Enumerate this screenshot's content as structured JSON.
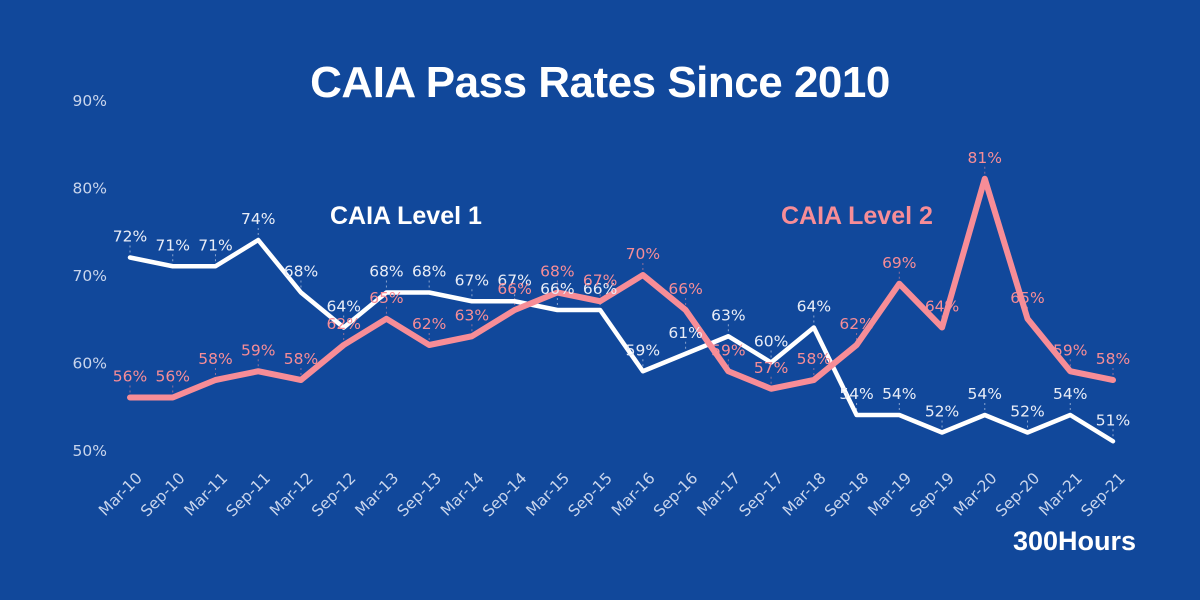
{
  "title": "CAIA Pass Rates Since 2010",
  "watermark": "300Hours",
  "colors": {
    "background": "#11489B",
    "level1": "#FFFFFF",
    "level1_label": "#E9EDF7",
    "level2": "#F78D97",
    "axis_text": "#C9D5EC"
  },
  "chart_data": {
    "type": "line",
    "title": "CAIA Pass Rates Since 2010",
    "categories": [
      "Mar-10",
      "Sep-10",
      "Mar-11",
      "Sep-11",
      "Mar-12",
      "Sep-12",
      "Mar-13",
      "Sep-13",
      "Mar-14",
      "Sep-14",
      "Mar-15",
      "Sep-15",
      "Mar-16",
      "Sep-16",
      "Mar-17",
      "Sep-17",
      "Mar-18",
      "Sep-18",
      "Mar-19",
      "Sep-19",
      "Mar-20",
      "Sep-20",
      "Mar-21",
      "Sep-21"
    ],
    "series": [
      {
        "name": "CAIA Level 1",
        "slug": "level1",
        "color": "#FFFFFF",
        "label_color": "#E9EDF7",
        "values": [
          72,
          71,
          71,
          74,
          68,
          64,
          68,
          68,
          67,
          67,
          66,
          66,
          59,
          61,
          63,
          60,
          64,
          54,
          54,
          52,
          54,
          52,
          54,
          51
        ]
      },
      {
        "name": "CAIA Level 2",
        "slug": "level2",
        "color": "#F78D97",
        "label_color": "#F78D97",
        "values": [
          56,
          56,
          58,
          59,
          58,
          62,
          65,
          62,
          63,
          66,
          68,
          67,
          70,
          66,
          59,
          57,
          58,
          62,
          69,
          64,
          81,
          65,
          59,
          58
        ]
      }
    ],
    "y_ticks": [
      90,
      80,
      70,
      60,
      50
    ],
    "ylim": [
      50,
      90
    ],
    "label_suffix": "%",
    "grid": false,
    "legend_position": "inline-annotations"
  }
}
